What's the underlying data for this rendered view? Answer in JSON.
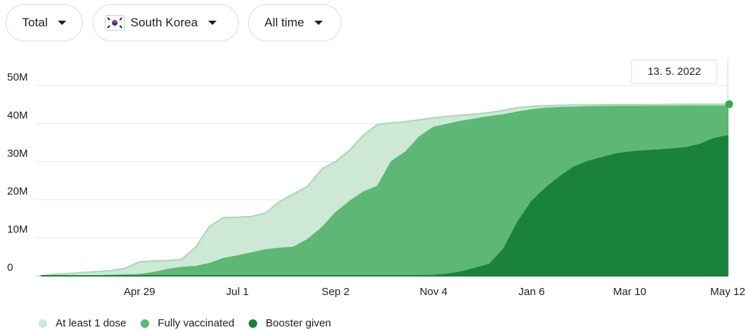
{
  "controls": [
    {
      "label": "Total"
    },
    {
      "label": "South Korea"
    },
    {
      "label": "All time"
    }
  ],
  "chart_data": {
    "type": "area",
    "annotation": "13. 5. 2022",
    "categories": [
      null,
      null,
      null,
      null,
      null,
      null,
      null,
      "Apr 29",
      null,
      null,
      null,
      null,
      null,
      null,
      "Jul 1",
      null,
      null,
      null,
      null,
      null,
      null,
      "Sep 2",
      null,
      null,
      null,
      null,
      null,
      null,
      "Nov 4",
      null,
      null,
      null,
      null,
      null,
      null,
      "Jan 6",
      null,
      null,
      null,
      null,
      null,
      null,
      "Mar 10",
      null,
      null,
      null,
      null,
      null,
      null,
      "May 12"
    ],
    "series": [
      {
        "name": "At least 1 dose",
        "color": "#cde8d5",
        "edge": "#a8d8b4",
        "values": [
          100000,
          400000,
          600000,
          900000,
          1100000,
          1400000,
          2000000,
          3700000,
          3900000,
          4000000,
          4300000,
          7500000,
          13000000,
          15300000,
          15400000,
          15600000,
          16500000,
          19500000,
          21500000,
          23500000,
          28000000,
          30000000,
          33000000,
          37000000,
          39800000,
          40200000,
          40500000,
          41000000,
          41500000,
          41900000,
          42200000,
          42500000,
          42900000,
          43500000,
          44200000,
          44500000,
          44700000,
          44800000,
          44900000,
          44900000,
          44950000,
          45000000,
          45000000,
          45000000,
          45000000,
          45050000,
          45050000,
          45100000,
          45100000,
          45100000
        ]
      },
      {
        "name": "Fully vaccinated",
        "color": "#5cb874",
        "edge": "#5cb874",
        "values": [
          0,
          0,
          0,
          0,
          0,
          100000,
          200000,
          300000,
          800000,
          1600000,
          2200000,
          2400000,
          3200000,
          4500000,
          5200000,
          6000000,
          6800000,
          7200000,
          7500000,
          9500000,
          12500000,
          16500000,
          19500000,
          22000000,
          23500000,
          30000000,
          32500000,
          36500000,
          39000000,
          39800000,
          40600000,
          41200000,
          41800000,
          42300000,
          43000000,
          43600000,
          44000000,
          44200000,
          44300000,
          44400000,
          44450000,
          44500000,
          44500000,
          44500000,
          44550000,
          44550000,
          44600000,
          44600000,
          44600000,
          44600000
        ]
      },
      {
        "name": "Booster given",
        "color": "#1a823a",
        "edge": "#1a823a",
        "values": [
          0,
          0,
          0,
          0,
          0,
          0,
          0,
          0,
          0,
          0,
          0,
          0,
          0,
          0,
          0,
          0,
          0,
          0,
          0,
          0,
          0,
          0,
          0,
          0,
          0,
          0,
          0,
          0,
          100000,
          400000,
          1000000,
          2000000,
          3000000,
          7000000,
          14000000,
          19500000,
          23000000,
          26000000,
          28500000,
          30000000,
          31000000,
          32000000,
          32500000,
          32800000,
          33000000,
          33300000,
          33600000,
          34500000,
          36000000,
          36800000
        ]
      }
    ],
    "ylim": [
      0,
      50000000
    ],
    "yticks": [
      0,
      {
        "value": 10000000,
        "label": "10M"
      },
      {
        "value": 20000000,
        "label": "20M"
      },
      {
        "value": 30000000,
        "label": "30M"
      },
      {
        "value": 40000000,
        "label": "40M"
      },
      {
        "value": 50000000,
        "label": "50M"
      }
    ],
    "grid": true,
    "end_marker_color": "#34a853"
  }
}
